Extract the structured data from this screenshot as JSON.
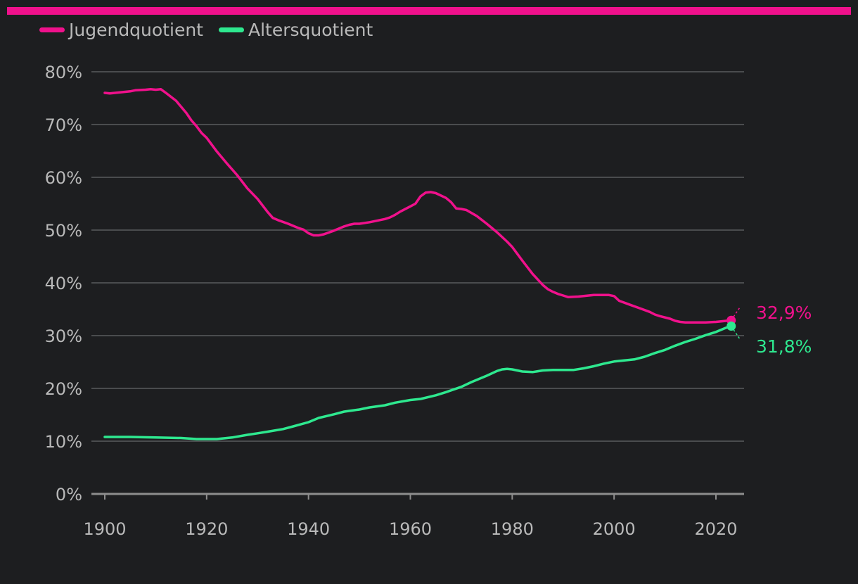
{
  "colors": {
    "background": "#1d1e20",
    "accent_bar": "#f0118c",
    "grid": "#5a5b5e",
    "axis": "#8d8d8d",
    "text": "#b9b9b9"
  },
  "legend": {
    "items": [
      {
        "label": "Jugendquotient",
        "color": "#f0118c"
      },
      {
        "label": "Altersquotient",
        "color": "#2ee88f"
      }
    ]
  },
  "chart_data": {
    "type": "line",
    "title": "",
    "xlabel": "",
    "ylabel": "",
    "xlim": [
      1900,
      2024
    ],
    "ylim": [
      0,
      80
    ],
    "x_ticks": [
      1900,
      1920,
      1940,
      1960,
      1980,
      2000,
      2020
    ],
    "x_tick_labels": [
      "1900",
      "1920",
      "1940",
      "1960",
      "1980",
      "2000",
      "2020"
    ],
    "y_ticks": [
      0,
      10,
      20,
      30,
      40,
      50,
      60,
      70,
      80
    ],
    "y_tick_labels": [
      "0%",
      "10%",
      "20%",
      "30%",
      "40%",
      "50%",
      "60%",
      "70%",
      "80%"
    ],
    "grid": true,
    "legend_position": "top-left",
    "series": [
      {
        "name": "Jugendquotient",
        "color": "#f0118c",
        "end_label": "32,9%",
        "label_color": "#f0118c",
        "x": [
          1900,
          1901,
          1903,
          1905,
          1906,
          1908,
          1909,
          1910,
          1911,
          1912,
          1914,
          1916,
          1917,
          1918,
          1919,
          1920,
          1922,
          1924,
          1926,
          1928,
          1930,
          1932,
          1933,
          1934,
          1936,
          1938,
          1939,
          1940,
          1941,
          1942,
          1943,
          1945,
          1947,
          1948,
          1949,
          1950,
          1952,
          1954,
          1955,
          1956,
          1957,
          1958,
          1960,
          1961,
          1962,
          1963,
          1964,
          1965,
          1967,
          1968,
          1969,
          1970,
          1971,
          1973,
          1975,
          1977,
          1979,
          1980,
          1981,
          1982,
          1984,
          1986,
          1987,
          1988,
          1989,
          1990,
          1991,
          1993,
          1995,
          1996,
          1997,
          1998,
          1999,
          2000,
          2001,
          2003,
          2005,
          2007,
          2008,
          2009,
          2011,
          2012,
          2013,
          2014,
          2016,
          2018,
          2020,
          2022,
          2023
        ],
        "values": [
          76.0,
          75.9,
          76.1,
          76.3,
          76.5,
          76.6,
          76.7,
          76.6,
          76.7,
          76.0,
          74.5,
          72.2,
          70.8,
          69.7,
          68.4,
          67.5,
          64.9,
          62.6,
          60.4,
          57.9,
          55.9,
          53.4,
          52.3,
          51.9,
          51.2,
          50.4,
          50.1,
          49.4,
          49.0,
          49.0,
          49.2,
          49.9,
          50.7,
          51.0,
          51.2,
          51.2,
          51.5,
          51.9,
          52.1,
          52.4,
          52.9,
          53.5,
          54.5,
          55.0,
          56.4,
          57.1,
          57.2,
          57.0,
          56.1,
          55.3,
          54.1,
          54.0,
          53.8,
          52.7,
          51.2,
          49.6,
          47.8,
          46.8,
          45.5,
          44.2,
          41.7,
          39.6,
          38.8,
          38.3,
          37.9,
          37.6,
          37.3,
          37.4,
          37.6,
          37.7,
          37.7,
          37.7,
          37.7,
          37.5,
          36.6,
          35.9,
          35.2,
          34.5,
          34.0,
          33.7,
          33.2,
          32.8,
          32.6,
          32.5,
          32.5,
          32.5,
          32.6,
          32.8,
          32.9
        ]
      },
      {
        "name": "Altersquotient",
        "color": "#2ee88f",
        "end_label": "31,8%",
        "label_color": "#2ee88f",
        "x": [
          1900,
          1905,
          1910,
          1915,
          1918,
          1920,
          1922,
          1925,
          1928,
          1930,
          1932,
          1935,
          1937,
          1940,
          1942,
          1945,
          1947,
          1950,
          1952,
          1955,
          1957,
          1960,
          1962,
          1965,
          1967,
          1970,
          1972,
          1975,
          1977,
          1978,
          1979,
          1980,
          1982,
          1984,
          1986,
          1988,
          1990,
          1992,
          1994,
          1996,
          1998,
          2000,
          2002,
          2004,
          2006,
          2008,
          2010,
          2012,
          2014,
          2016,
          2018,
          2020,
          2022,
          2023
        ],
        "values": [
          10.8,
          10.8,
          10.7,
          10.6,
          10.4,
          10.4,
          10.4,
          10.7,
          11.2,
          11.5,
          11.8,
          12.3,
          12.8,
          13.6,
          14.4,
          15.1,
          15.6,
          16.0,
          16.4,
          16.8,
          17.3,
          17.8,
          18.0,
          18.7,
          19.3,
          20.3,
          21.2,
          22.4,
          23.3,
          23.6,
          23.7,
          23.6,
          23.2,
          23.1,
          23.4,
          23.5,
          23.5,
          23.5,
          23.8,
          24.2,
          24.7,
          25.1,
          25.3,
          25.5,
          26.0,
          26.7,
          27.3,
          28.1,
          28.8,
          29.4,
          30.1,
          30.7,
          31.5,
          31.8
        ]
      }
    ]
  }
}
